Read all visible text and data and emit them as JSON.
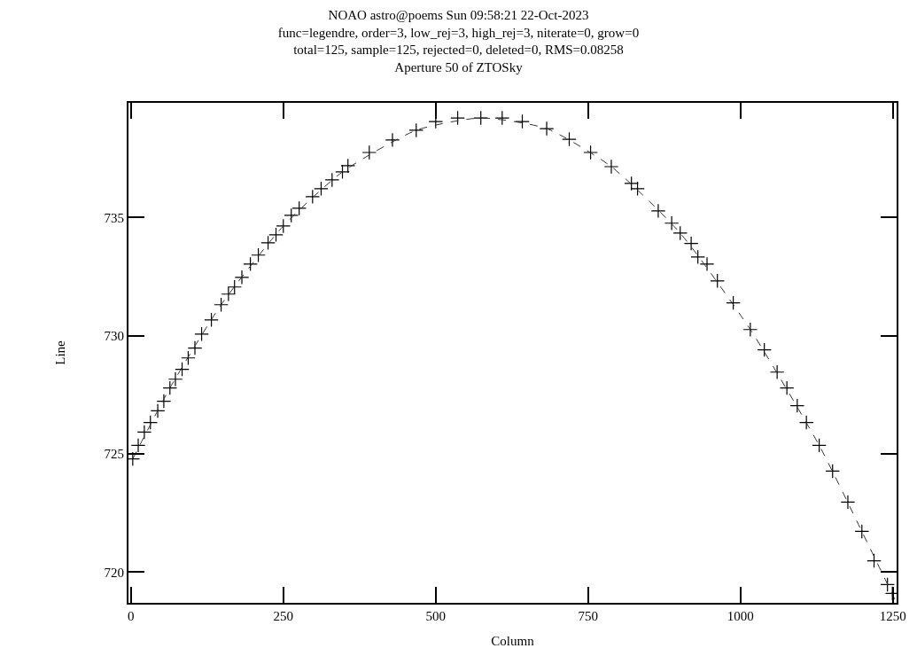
{
  "chart_data": {
    "type": "scatter",
    "title": "NOAO astro@poems Sun 09:58:21 22-Oct-2023\nfunc=legendre, order=3, low_rej=3, high_rej=3, niterate=0, grow=0\ntotal=125, sample=125, rejected=0, deleted=0, RMS=0.08258\nAperture 50 of ZTOSky",
    "xlabel": "Column",
    "ylabel": "Line",
    "series": [
      {
        "color": "#000000",
        "marker": "cross",
        "x": [
          3,
          12,
          22,
          32,
          44,
          54,
          64,
          73,
          84,
          94,
          105,
          116,
          132,
          148,
          160,
          170,
          182,
          196,
          209,
          225,
          238,
          250,
          263,
          276,
          298,
          312,
          330,
          347,
          356,
          391,
          429,
          468,
          500,
          536,
          574,
          609,
          642,
          682,
          719,
          754,
          788,
          821,
          831,
          865,
          887,
          901,
          919,
          930,
          945,
          962,
          988,
          1016,
          1039,
          1060,
          1076,
          1093,
          1108,
          1129,
          1151,
          1176,
          1199,
          1219,
          1241,
          1249
        ],
        "values": [
          724.79,
          725.36,
          725.92,
          726.33,
          726.82,
          727.23,
          727.79,
          728.16,
          728.58,
          729.06,
          729.48,
          730.07,
          730.67,
          731.31,
          731.76,
          732.06,
          732.47,
          733.03,
          733.41,
          733.93,
          734.27,
          734.64,
          735.09,
          735.39,
          735.88,
          736.22,
          736.59,
          736.93,
          737.19,
          737.75,
          738.28,
          738.69,
          739.06,
          739.21,
          739.21,
          739.21,
          739.06,
          738.76,
          738.31,
          737.75,
          737.15,
          736.44,
          736.22,
          735.28,
          734.76,
          734.34,
          733.9,
          733.33,
          733.03,
          732.32,
          731.39,
          730.26,
          729.4,
          728.46,
          727.79,
          727.04,
          726.33,
          725.36,
          724.27,
          722.96,
          721.72,
          720.48,
          719.47,
          719.1
        ]
      },
      {
        "type": "line",
        "color": "#333333",
        "line_style": "dashed",
        "x": [
          3,
          64,
          148,
          250,
          347,
          468,
          574,
          682,
          788,
          901,
          1016,
          1129,
          1199,
          1254
        ],
        "values": [
          724.79,
          727.79,
          731.31,
          734.64,
          736.93,
          738.69,
          739.21,
          738.76,
          737.15,
          734.34,
          730.26,
          725.36,
          721.72,
          718.8
        ]
      }
    ],
    "xlim": [
      -4,
      1256
    ],
    "xticks": [
      0,
      250,
      500,
      750,
      1000,
      1250
    ],
    "ylim": [
      718.7,
      739.85
    ],
    "yticks": [
      720,
      725,
      730,
      735
    ]
  }
}
